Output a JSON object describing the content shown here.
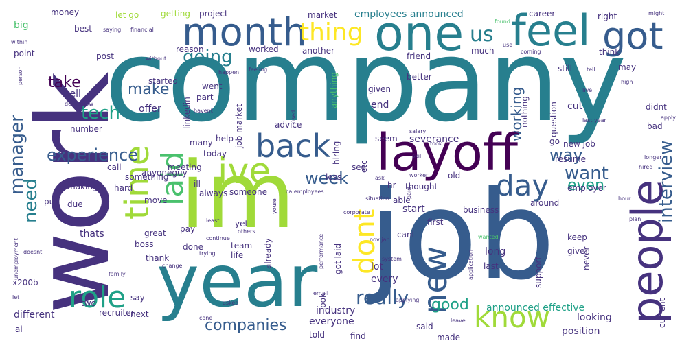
{
  "palette": {
    "background": "#ffffff",
    "colors": [
      "#440154",
      "#46327e",
      "#365c8d",
      "#277f8e",
      "#1fa187",
      "#4ac16d",
      "#a0da39",
      "#fde725"
    ]
  },
  "words": [
    {
      "text": "company"
    },
    {
      "text": "work"
    },
    {
      "text": "job"
    },
    {
      "text": "im"
    },
    {
      "text": "year"
    },
    {
      "text": "layoff"
    },
    {
      "text": "month"
    },
    {
      "text": "one"
    },
    {
      "text": "feel"
    },
    {
      "text": "got"
    },
    {
      "text": "people"
    },
    {
      "text": "ive"
    },
    {
      "text": "back"
    },
    {
      "text": "time"
    },
    {
      "text": "laid"
    },
    {
      "text": "know"
    },
    {
      "text": "role"
    },
    {
      "text": "day"
    },
    {
      "text": "new"
    },
    {
      "text": "dont"
    },
    {
      "text": "thing"
    },
    {
      "text": "us"
    },
    {
      "text": "going"
    },
    {
      "text": "manager"
    },
    {
      "text": "experience"
    },
    {
      "text": "interview"
    },
    {
      "text": "want"
    },
    {
      "text": "way"
    },
    {
      "text": "really"
    },
    {
      "text": "companies"
    },
    {
      "text": "even"
    },
    {
      "text": "week"
    },
    {
      "text": "need"
    },
    {
      "text": "tech"
    },
    {
      "text": "take"
    },
    {
      "text": "make"
    },
    {
      "text": "working"
    },
    {
      "text": "good"
    },
    {
      "text": "announced effective"
    },
    {
      "text": "employees announced"
    },
    {
      "text": "market"
    },
    {
      "text": "money"
    },
    {
      "text": "let go"
    },
    {
      "text": "getting"
    },
    {
      "text": "project"
    },
    {
      "text": "career"
    },
    {
      "text": "right"
    },
    {
      "text": "might"
    },
    {
      "text": "big"
    },
    {
      "text": "best"
    },
    {
      "text": "saying"
    },
    {
      "text": "financial"
    },
    {
      "text": "found"
    },
    {
      "text": "within"
    },
    {
      "text": "point"
    },
    {
      "text": "post"
    },
    {
      "text": "reason"
    },
    {
      "text": "worked"
    },
    {
      "text": "another"
    },
    {
      "text": "friend"
    },
    {
      "text": "much"
    },
    {
      "text": "still"
    },
    {
      "text": "think"
    },
    {
      "text": "feeling"
    },
    {
      "text": "without"
    },
    {
      "text": "use"
    },
    {
      "text": "coming"
    },
    {
      "text": "may"
    },
    {
      "text": "started"
    },
    {
      "text": "went"
    },
    {
      "text": "part"
    },
    {
      "text": "anything"
    },
    {
      "text": "better"
    },
    {
      "text": "happen"
    },
    {
      "text": "tell"
    },
    {
      "text": "high"
    },
    {
      "text": "well"
    },
    {
      "text": "dont know"
    },
    {
      "text": "person"
    },
    {
      "text": "offer"
    },
    {
      "text": "linkedin"
    },
    {
      "text": "havent"
    },
    {
      "text": "job market"
    },
    {
      "text": "given"
    },
    {
      "text": "end"
    },
    {
      "text": "nothing"
    },
    {
      "text": "question"
    },
    {
      "text": "cut"
    },
    {
      "text": "live"
    },
    {
      "text": "last year"
    },
    {
      "text": "apply"
    },
    {
      "text": "number"
    },
    {
      "text": "hiring"
    },
    {
      "text": "used"
    },
    {
      "text": "didnt"
    },
    {
      "text": "bad"
    },
    {
      "text": "anyoneguy"
    },
    {
      "text": "many"
    },
    {
      "text": "help"
    },
    {
      "text": "advice"
    },
    {
      "text": "seem"
    },
    {
      "text": "severance"
    },
    {
      "text": "go"
    },
    {
      "text": "new job"
    },
    {
      "text": "today"
    },
    {
      "text": "etc"
    },
    {
      "text": "took"
    },
    {
      "text": "salary"
    },
    {
      "text": "skill"
    },
    {
      "text": "call"
    },
    {
      "text": "meeting"
    },
    {
      "text": "less"
    },
    {
      "text": "see"
    },
    {
      "text": "resume"
    },
    {
      "text": "longer"
    },
    {
      "text": "hired"
    },
    {
      "text": "something"
    },
    {
      "text": "ill"
    },
    {
      "text": "ask"
    },
    {
      "text": "worker"
    },
    {
      "text": "hr"
    },
    {
      "text": "old"
    },
    {
      "text": "employer"
    },
    {
      "text": "making"
    },
    {
      "text": "hard"
    },
    {
      "text": "always"
    },
    {
      "text": "someone"
    },
    {
      "text": "ca employees"
    },
    {
      "text": "thought"
    },
    {
      "text": "put"
    },
    {
      "text": "due"
    },
    {
      "text": "move"
    },
    {
      "text": "able"
    },
    {
      "text": "start"
    },
    {
      "text": "situation"
    },
    {
      "text": "hour"
    },
    {
      "text": "yet"
    },
    {
      "text": "youre"
    },
    {
      "text": "corporate"
    },
    {
      "text": "paid"
    },
    {
      "text": "business"
    },
    {
      "text": "around"
    },
    {
      "text": "support"
    },
    {
      "text": "plan"
    },
    {
      "text": "unemployment"
    },
    {
      "text": "thats"
    },
    {
      "text": "pay"
    },
    {
      "text": "least"
    },
    {
      "text": "others"
    },
    {
      "text": "first"
    },
    {
      "text": "great"
    },
    {
      "text": "continue"
    },
    {
      "text": "team"
    },
    {
      "text": "nov jan"
    },
    {
      "text": "cant"
    },
    {
      "text": "keep"
    },
    {
      "text": "never"
    },
    {
      "text": "wanted"
    },
    {
      "text": "boss"
    },
    {
      "text": "done"
    },
    {
      "text": "trying"
    },
    {
      "text": "life"
    },
    {
      "text": "got laid"
    },
    {
      "text": "long"
    },
    {
      "text": "give"
    },
    {
      "text": "doesnt"
    },
    {
      "text": "thank"
    },
    {
      "text": "change"
    },
    {
      "text": "already"
    },
    {
      "text": "performance"
    },
    {
      "text": "system"
    },
    {
      "text": "last"
    },
    {
      "text": "family"
    },
    {
      "text": "lot"
    },
    {
      "text": "every"
    },
    {
      "text": "application"
    },
    {
      "text": "x200b"
    },
    {
      "text": "say"
    },
    {
      "text": "email"
    },
    {
      "text": "let"
    },
    {
      "text": "two"
    },
    {
      "text": "asked"
    },
    {
      "text": "applying"
    },
    {
      "text": "recruiter"
    },
    {
      "text": "look"
    },
    {
      "text": "industry"
    },
    {
      "text": "looking"
    },
    {
      "text": "current"
    },
    {
      "text": "different"
    },
    {
      "text": "next"
    },
    {
      "text": "everyone"
    },
    {
      "text": "said"
    },
    {
      "text": "leave"
    },
    {
      "text": "position"
    },
    {
      "text": "cone"
    },
    {
      "text": "ai"
    },
    {
      "text": "told"
    },
    {
      "text": "find"
    },
    {
      "text": "made"
    }
  ]
}
